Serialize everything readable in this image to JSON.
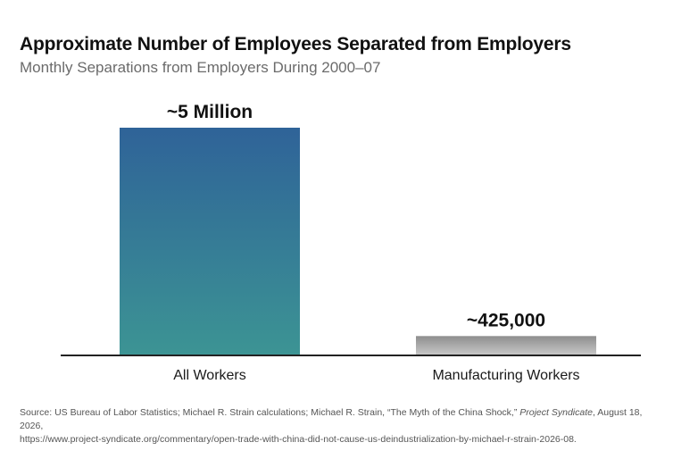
{
  "title": "Approximate Number of Employees Separated from Employers",
  "subtitle": "Monthly Separations from Employers During 2000–07",
  "source": {
    "text_before": "Source: US Bureau of Labor Statistics; Michael R. Strain calculations; Michael R. Strain, “The Myth of the China Shock,” ",
    "publication": "Project Syndicate",
    "text_after": ", August 18, 2026,",
    "url": "https://www.project-syndicate.org/commentary/open-trade-with-china-did-not-cause-us-deindustrialization-by-michael-r-strain-2026-08."
  },
  "colors": {
    "bar1_top": "#2f6398",
    "bar1_bottom": "#3c9494",
    "bar2_top": "#8e8e8e",
    "bar2_bottom": "#c9c9c9",
    "axis": "#222222"
  },
  "chart_data": {
    "type": "bar",
    "categories": [
      "All Workers",
      "Manufacturing Workers"
    ],
    "values": [
      5000000,
      425000
    ],
    "data_labels": [
      "~5 Million",
      "~425,000"
    ],
    "title": "Approximate Number of Employees Separated from Employers",
    "subtitle": "Monthly Separations from Employers During 2000–07",
    "ylim": [
      0,
      5000000
    ],
    "grid": false
  }
}
